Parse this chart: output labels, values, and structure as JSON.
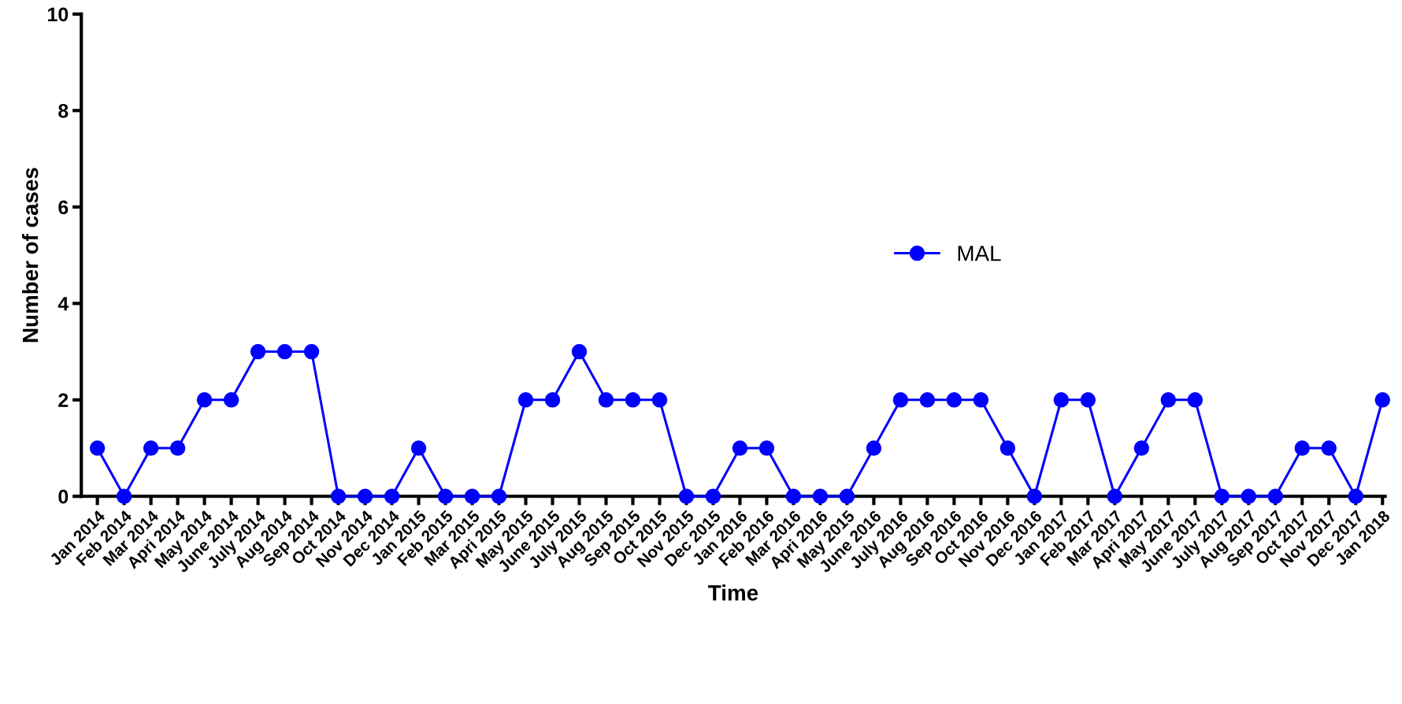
{
  "chart_data": {
    "type": "line",
    "xlabel": "Time",
    "ylabel": "Number of cases",
    "categories": [
      "Jan 2014",
      "Feb 2014",
      "Mar 2014",
      "Apri 2014",
      "May 2014",
      "June 2014",
      "July 2014",
      "Aug 2014",
      "Sep 2014",
      "Oct 2014",
      "Nov 2014",
      "Dec 2014",
      "Jan 2015",
      "Feb 2015",
      "Mar 2015",
      "Apri 2015",
      "May 2015",
      "June 2015",
      "July 2015",
      "Aug 2015",
      "Sep 2015",
      "Oct 2015",
      "Nov 2015",
      "Dec 2015",
      "Jan 2016",
      "Feb 2016",
      "Mar 2016",
      "Apri 2016",
      "May 2015",
      "June 2016",
      "July 2016",
      "Aug 2016",
      "Sep 2016",
      "Oct 2016",
      "Nov 2016",
      "Dec 2016",
      "Jan 2017",
      "Feb 2017",
      "Mar 2017",
      "Apri 2017",
      "May 2017",
      "June 2017",
      "July 2017",
      "Aug 2017",
      "Sep 2017",
      "Oct 2017",
      "Nov 2017",
      "Dec 2017",
      "Jan 2018"
    ],
    "series": [
      {
        "name": "MAL",
        "color": "#0000ff",
        "values": [
          1,
          0,
          1,
          1,
          2,
          2,
          3,
          3,
          3,
          0,
          0,
          0,
          1,
          0,
          0,
          0,
          2,
          2,
          3,
          2,
          2,
          2,
          0,
          0,
          1,
          1,
          0,
          0,
          0,
          1,
          2,
          2,
          2,
          2,
          1,
          0,
          2,
          2,
          0,
          1,
          2,
          2,
          0,
          0,
          0,
          1,
          1,
          0,
          2
        ]
      }
    ],
    "ylim": [
      0,
      10
    ],
    "yticks": [
      0,
      2,
      4,
      6,
      8,
      10
    ],
    "grid": false,
    "legend": "right",
    "marker": "circle",
    "line_style": "solid"
  }
}
